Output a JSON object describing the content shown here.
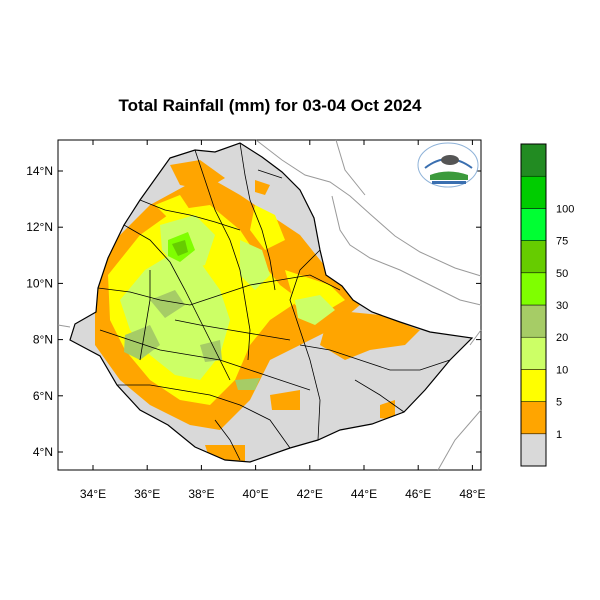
{
  "title": "Total Rainfall (mm) for 03-04 Oct 2024",
  "axes": {
    "lat_labels": [
      {
        "lat": 14,
        "label": "14°N"
      },
      {
        "lat": 12,
        "label": "12°N"
      },
      {
        "lat": 10,
        "label": "10°N"
      },
      {
        "lat": 8,
        "label": "8°N"
      },
      {
        "lat": 6,
        "label": "6°N"
      },
      {
        "lat": 4,
        "label": "4°N"
      }
    ],
    "lon_labels": [
      {
        "lon": 34,
        "label": "34°E"
      },
      {
        "lon": 36,
        "label": "36°E"
      },
      {
        "lon": 38,
        "label": "38°E"
      },
      {
        "lon": 40,
        "label": "40°E"
      },
      {
        "lon": 42,
        "label": "42°E"
      },
      {
        "lon": 44,
        "label": "44°E"
      },
      {
        "lon": 46,
        "label": "46°E"
      },
      {
        "lon": 48,
        "label": "48°E"
      }
    ]
  },
  "colorbar": {
    "bins": [
      {
        "color": "#d9d9d9"
      },
      {
        "color": "#ffa500"
      },
      {
        "color": "#ffff00"
      },
      {
        "color": "#ccff66"
      },
      {
        "color": "#a6cc66"
      },
      {
        "color": "#7fff00"
      },
      {
        "color": "#66cc00"
      },
      {
        "color": "#00ff33"
      },
      {
        "color": "#00cc00"
      },
      {
        "color": "#228b22"
      }
    ],
    "labels": [
      "1",
      "5",
      "10",
      "20",
      "30",
      "50",
      "75",
      "100"
    ]
  },
  "colors": {
    "no_rain": "#d9d9d9",
    "r1_5": "#ffa500",
    "r5_10": "#ffff00",
    "r10_20": "#ccff66",
    "r20_30": "#a6cc66",
    "r30_50": "#7fff00",
    "r50_75": "#66cc00"
  },
  "logo": {
    "icon": "agency-logo-icon"
  }
}
